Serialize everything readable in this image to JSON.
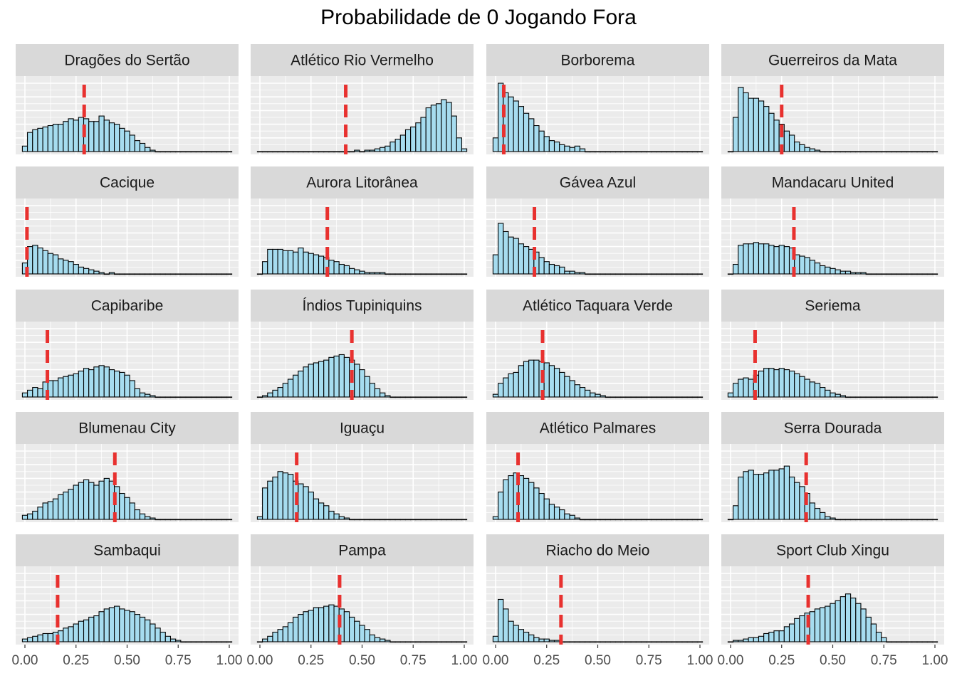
{
  "chart_data": {
    "type": "histogram-facets",
    "title": "Probabilidade de 0 Jogando Fora",
    "xlim": [
      0,
      1
    ],
    "x_ticks": [
      "0.00",
      "0.25",
      "0.50",
      "0.75",
      "1.00"
    ],
    "bin_width": 0.025,
    "colors": {
      "bar_fill": "#a6dcef",
      "bar_stroke": "#000000",
      "vline": "#e8312f",
      "panel_bg": "#ebebeb",
      "strip_bg": "#d9d9d9"
    },
    "facets": [
      {
        "name": "Dragões do Sertão",
        "vline": 0.29,
        "counts": [
          4,
          14,
          16,
          17,
          18,
          19,
          20,
          20,
          22,
          24,
          23,
          25,
          24,
          22,
          22,
          26,
          23,
          21,
          20,
          17,
          15,
          12,
          8,
          6,
          3,
          1,
          0,
          0,
          0,
          0,
          0,
          0,
          0,
          0,
          0,
          0,
          0,
          0,
          0,
          0,
          0
        ]
      },
      {
        "name": "Atlético Rio Vermelho",
        "vline": 0.42,
        "counts": [
          0,
          0,
          0,
          0,
          0,
          0,
          0,
          0,
          0,
          0,
          0,
          0,
          0,
          0,
          0,
          0,
          0,
          0,
          0,
          1,
          0,
          1,
          1,
          2,
          3,
          4,
          7,
          9,
          12,
          16,
          18,
          21,
          25,
          32,
          34,
          35,
          38,
          36,
          26,
          10,
          2
        ]
      },
      {
        "name": "Borborema",
        "vline": 0.04,
        "counts": [
          10,
          50,
          43,
          40,
          37,
          33,
          28,
          24,
          19,
          15,
          11,
          8,
          7,
          5,
          4,
          3,
          4,
          2,
          0,
          0,
          0,
          0,
          0,
          0,
          0,
          0,
          0,
          0,
          0,
          0,
          0,
          0,
          0,
          0,
          0,
          0,
          0,
          0,
          0,
          0,
          0
        ]
      },
      {
        "name": "Guerreiros da Mata",
        "vline": 0.25,
        "counts": [
          0,
          25,
          47,
          43,
          39,
          39,
          37,
          33,
          28,
          23,
          20,
          15,
          12,
          7,
          5,
          3,
          2,
          1,
          0,
          0,
          0,
          0,
          0,
          0,
          0,
          0,
          0,
          0,
          0,
          0,
          0,
          0,
          0,
          0,
          0,
          0,
          0,
          0,
          0,
          0,
          0
        ]
      },
      {
        "name": "Cacique",
        "vline": 0.01,
        "counts": [
          8,
          20,
          21,
          19,
          17,
          15,
          14,
          11,
          10,
          9,
          7,
          5,
          4,
          3,
          2,
          1,
          0,
          1,
          0,
          0,
          0,
          0,
          0,
          0,
          0,
          0,
          0,
          0,
          0,
          0,
          0,
          0,
          0,
          0,
          0,
          0,
          0,
          0,
          0,
          0,
          0
        ]
      },
      {
        "name": "Aurora Litorânea",
        "vline": 0.33,
        "counts": [
          0,
          9,
          18,
          18,
          18,
          17,
          17,
          16,
          19,
          16,
          15,
          14,
          13,
          12,
          10,
          9,
          7,
          6,
          4,
          3,
          2,
          1,
          1,
          1,
          1,
          0,
          0,
          0,
          0,
          0,
          0,
          0,
          0,
          0,
          0,
          0,
          0,
          0,
          0,
          0,
          0
        ]
      },
      {
        "name": "Gávea Azul",
        "vline": 0.19,
        "counts": [
          14,
          37,
          31,
          27,
          26,
          22,
          20,
          18,
          16,
          12,
          9,
          7,
          6,
          5,
          2,
          2,
          1,
          1,
          0,
          0,
          0,
          0,
          0,
          0,
          0,
          0,
          0,
          0,
          0,
          0,
          0,
          0,
          0,
          0,
          0,
          0,
          0,
          0,
          0,
          0,
          0
        ]
      },
      {
        "name": "Mandacaru United",
        "vline": 0.31,
        "counts": [
          0,
          7,
          21,
          22,
          22,
          23,
          22,
          22,
          21,
          20,
          21,
          20,
          19,
          14,
          13,
          12,
          10,
          8,
          6,
          5,
          4,
          3,
          2,
          2,
          1,
          1,
          1,
          0,
          0,
          0,
          0,
          0,
          0,
          0,
          0,
          0,
          0,
          0,
          0,
          0,
          0
        ]
      },
      {
        "name": "Capibaribe",
        "vline": 0.11,
        "counts": [
          3,
          5,
          7,
          6,
          11,
          12,
          12,
          14,
          15,
          16,
          17,
          19,
          21,
          20,
          22,
          23,
          22,
          20,
          19,
          18,
          16,
          12,
          6,
          3,
          2,
          1,
          0,
          0,
          0,
          0,
          0,
          0,
          0,
          0,
          0,
          0,
          0,
          0,
          0,
          0,
          0
        ]
      },
      {
        "name": "Índios Tupiniquins",
        "vline": 0.45,
        "counts": [
          0,
          1,
          3,
          5,
          7,
          10,
          13,
          16,
          19,
          22,
          24,
          25,
          26,
          27,
          29,
          30,
          31,
          29,
          27,
          24,
          20,
          15,
          10,
          6,
          3,
          1,
          0,
          0,
          0,
          0,
          0,
          0,
          0,
          0,
          0,
          0,
          0,
          0,
          0,
          0,
          0
        ]
      },
      {
        "name": "Atlético Taquara Verde",
        "vline": 0.23,
        "counts": [
          2,
          10,
          14,
          17,
          18,
          23,
          26,
          27,
          27,
          26,
          25,
          23,
          21,
          18,
          15,
          12,
          9,
          7,
          5,
          3,
          2,
          1,
          0,
          0,
          0,
          0,
          0,
          0,
          0,
          0,
          0,
          0,
          0,
          0,
          0,
          0,
          0,
          0,
          0,
          0,
          0
        ]
      },
      {
        "name": "Seriema",
        "vline": 0.12,
        "counts": [
          3,
          10,
          13,
          14,
          13,
          16,
          19,
          21,
          21,
          20,
          21,
          20,
          19,
          17,
          15,
          13,
          11,
          10,
          7,
          5,
          3,
          2,
          1,
          0,
          0,
          0,
          0,
          0,
          0,
          0,
          0,
          0,
          0,
          0,
          0,
          0,
          0,
          0,
          0,
          0,
          0
        ]
      },
      {
        "name": "Blumenau City",
        "vline": 0.44,
        "counts": [
          3,
          4,
          6,
          9,
          12,
          13,
          15,
          18,
          20,
          22,
          25,
          27,
          29,
          27,
          25,
          28,
          30,
          28,
          24,
          19,
          16,
          12,
          7,
          4,
          2,
          1,
          0,
          0,
          0,
          0,
          0,
          0,
          0,
          0,
          0,
          0,
          0,
          0,
          0,
          0,
          0
        ]
      },
      {
        "name": "Iguaçu",
        "vline": 0.18,
        "counts": [
          2,
          23,
          28,
          31,
          35,
          34,
          33,
          28,
          26,
          24,
          20,
          15,
          12,
          10,
          6,
          4,
          2,
          1,
          0,
          0,
          0,
          0,
          0,
          0,
          0,
          0,
          0,
          0,
          0,
          0,
          0,
          0,
          0,
          0,
          0,
          0,
          0,
          0,
          0,
          0,
          0
        ]
      },
      {
        "name": "Atlético Palmares",
        "vline": 0.11,
        "counts": [
          2,
          20,
          29,
          32,
          34,
          32,
          30,
          27,
          23,
          19,
          15,
          11,
          9,
          7,
          4,
          3,
          1,
          0,
          0,
          0,
          0,
          0,
          0,
          0,
          0,
          0,
          0,
          0,
          0,
          0,
          0,
          0,
          0,
          0,
          0,
          0,
          0,
          0,
          0,
          0,
          0
        ]
      },
      {
        "name": "Serra Dourada",
        "vline": 0.37,
        "counts": [
          0,
          10,
          31,
          35,
          36,
          33,
          33,
          34,
          36,
          36,
          37,
          39,
          31,
          27,
          24,
          19,
          12,
          8,
          5,
          2,
          1,
          0,
          0,
          0,
          0,
          0,
          0,
          0,
          0,
          0,
          0,
          0,
          0,
          0,
          0,
          0,
          0,
          0,
          0,
          0,
          0
        ]
      },
      {
        "name": "Sambaqui",
        "vline": 0.16,
        "counts": [
          2,
          3,
          4,
          5,
          6,
          6,
          7,
          8,
          10,
          11,
          13,
          15,
          16,
          18,
          19,
          22,
          24,
          25,
          26,
          24,
          23,
          22,
          20,
          18,
          16,
          13,
          10,
          7,
          4,
          2,
          1,
          0,
          0,
          0,
          0,
          0,
          0,
          0,
          0,
          0,
          0
        ]
      },
      {
        "name": "Pampa",
        "vline": 0.39,
        "counts": [
          0,
          2,
          4,
          7,
          9,
          11,
          14,
          18,
          20,
          22,
          23,
          25,
          25,
          26,
          27,
          26,
          24,
          22,
          18,
          15,
          12,
          9,
          5,
          3,
          2,
          1,
          0,
          0,
          0,
          0,
          0,
          0,
          0,
          0,
          0,
          0,
          0,
          0,
          0,
          0,
          0
        ]
      },
      {
        "name": "Riacho do Meio",
        "vline": 0.32,
        "counts": [
          4,
          31,
          24,
          15,
          12,
          9,
          7,
          5,
          3,
          2,
          2,
          1,
          1,
          0,
          0,
          0,
          0,
          0,
          0,
          0,
          0,
          0,
          0,
          0,
          0,
          0,
          0,
          0,
          0,
          0,
          0,
          0,
          0,
          0,
          0,
          0,
          0,
          0,
          0,
          0,
          0
        ]
      },
      {
        "name": "Sport Club Xingu",
        "vline": 0.38,
        "counts": [
          0,
          1,
          1,
          2,
          3,
          3,
          4,
          6,
          7,
          8,
          8,
          11,
          13,
          17,
          19,
          21,
          22,
          24,
          25,
          26,
          28,
          30,
          33,
          35,
          32,
          28,
          24,
          18,
          13,
          7,
          3,
          0,
          0,
          0,
          0,
          0,
          0,
          0,
          0,
          0,
          0
        ]
      }
    ]
  }
}
